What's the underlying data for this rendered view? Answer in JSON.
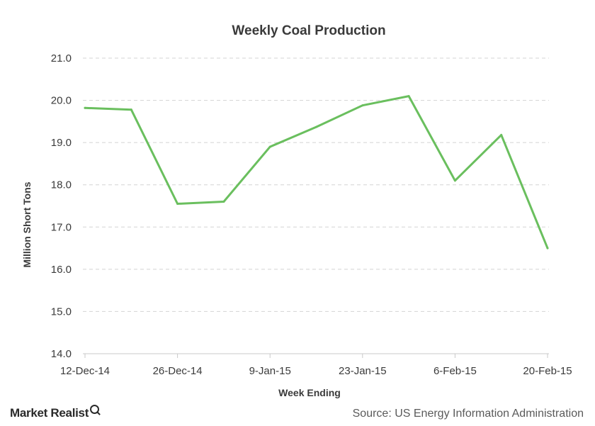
{
  "chart_data": {
    "type": "line",
    "title": "Weekly Coal Production",
    "xlabel": "Week Ending",
    "ylabel": "Million Short Tons",
    "ylim": [
      14.0,
      21.0
    ],
    "yticks": [
      "14.0",
      "15.0",
      "16.0",
      "17.0",
      "18.0",
      "19.0",
      "20.0",
      "21.0"
    ],
    "x_tick_labels": [
      "12-Dec-14",
      "26-Dec-14",
      "9-Jan-15",
      "23-Jan-15",
      "6-Feb-15",
      "20-Feb-15"
    ],
    "grid": "horizontal dashed",
    "line_color": "#6abf5e",
    "series": [
      {
        "x": [
          "12-Dec-14",
          "19-Dec-14",
          "26-Dec-14",
          "2-Jan-15",
          "9-Jan-15",
          "16-Jan-15",
          "23-Jan-15",
          "30-Jan-15",
          "6-Feb-15",
          "13-Feb-15",
          "20-Feb-15"
        ],
        "values": [
          19.82,
          19.78,
          17.55,
          17.6,
          18.9,
          19.37,
          19.88,
          20.1,
          18.1,
          19.18,
          16.5
        ]
      }
    ]
  },
  "footer": {
    "logo_text": "Market Realist",
    "source": "Source: US Energy Information Administration"
  }
}
